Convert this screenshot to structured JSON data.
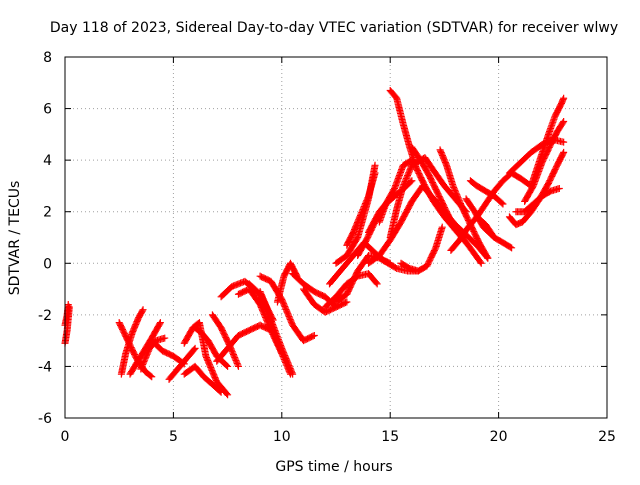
{
  "chart_data": {
    "type": "scatter",
    "title": "Day 118 of 2023, Sidereal Day-to-day VTEC variation (SDTVAR) for receiver wlwy",
    "xlabel": "GPS time / hours",
    "ylabel": "SDTVAR / TECUs",
    "xlim": [
      0,
      25
    ],
    "ylim": [
      -6,
      8
    ],
    "x_ticks": [
      0,
      5,
      10,
      15,
      20,
      25
    ],
    "y_ticks": [
      -6,
      -4,
      -2,
      0,
      2,
      4,
      6,
      8
    ],
    "x_tick_labels": [
      "0",
      "5",
      "10",
      "15",
      "20",
      "25"
    ],
    "y_tick_labels": [
      "-6",
      "-4",
      "-2",
      "0",
      "2",
      "4",
      "6",
      "8"
    ],
    "grid": true,
    "marker": "plus",
    "color": "#ff0000",
    "series": [
      {
        "x": [
          0.0,
          0.1,
          0.2
        ],
        "y": [
          -3.1,
          -2.6,
          -1.7
        ]
      },
      {
        "x": [
          0.0,
          0.1,
          0.15
        ],
        "y": [
          -2.4,
          -2.0,
          -1.6
        ]
      },
      {
        "x": [
          2.5,
          2.9,
          3.3,
          3.7,
          4.0
        ],
        "y": [
          -2.3,
          -3.0,
          -3.7,
          -4.2,
          -4.4
        ]
      },
      {
        "x": [
          2.6,
          2.8,
          3.1,
          3.4,
          3.6
        ],
        "y": [
          -4.3,
          -3.5,
          -2.7,
          -2.1,
          -1.8
        ]
      },
      {
        "x": [
          3.0,
          3.5,
          4.0,
          4.4
        ],
        "y": [
          -4.3,
          -3.6,
          -2.9,
          -2.3
        ]
      },
      {
        "x": [
          3.5,
          3.9,
          4.2,
          4.6
        ],
        "y": [
          -4.1,
          -3.3,
          -3.0,
          -2.9
        ]
      },
      {
        "x": [
          4.0,
          4.5,
          5.0,
          5.5
        ],
        "y": [
          -3.0,
          -3.4,
          -3.6,
          -3.9
        ]
      },
      {
        "x": [
          4.8,
          5.2,
          5.6,
          6.0
        ],
        "y": [
          -4.5,
          -4.1,
          -3.7,
          -3.3
        ]
      },
      {
        "x": [
          5.5,
          5.9,
          6.2,
          6.5,
          7.0,
          7.5
        ],
        "y": [
          -3.1,
          -2.5,
          -2.3,
          -3.6,
          -4.6,
          -5.1
        ]
      },
      {
        "x": [
          5.5,
          6.0,
          6.4,
          6.8,
          7.2
        ],
        "y": [
          -4.3,
          -4.0,
          -4.4,
          -4.7,
          -5.0
        ]
      },
      {
        "x": [
          6.0,
          6.3,
          6.6,
          7.0,
          7.5
        ],
        "y": [
          -2.5,
          -2.7,
          -3.0,
          -3.6,
          -4.0
        ]
      },
      {
        "x": [
          6.8,
          7.2,
          7.6,
          8.0
        ],
        "y": [
          -2.0,
          -2.5,
          -3.2,
          -4.0
        ]
      },
      {
        "x": [
          7.0,
          7.5,
          8.0,
          8.5,
          9.0,
          9.5
        ],
        "y": [
          -3.8,
          -3.3,
          -2.8,
          -2.6,
          -2.4,
          -2.6
        ]
      },
      {
        "x": [
          7.2,
          7.7,
          8.3,
          9.0,
          9.6
        ],
        "y": [
          -1.3,
          -0.9,
          -0.7,
          -1.2,
          -2.2
        ]
      },
      {
        "x": [
          8.0,
          8.5,
          9.0,
          9.5,
          10.0
        ],
        "y": [
          -1.2,
          -1.0,
          -1.6,
          -2.6,
          -3.5
        ]
      },
      {
        "x": [
          8.5,
          9.0,
          9.5,
          10.0,
          10.5
        ],
        "y": [
          -0.8,
          -1.2,
          -2.2,
          -3.3,
          -4.3
        ]
      },
      {
        "x": [
          9.0,
          9.3,
          9.6,
          10.0,
          10.4
        ],
        "y": [
          -1.1,
          -1.7,
          -2.6,
          -3.5,
          -4.3
        ]
      },
      {
        "x": [
          9.0,
          9.5,
          10.0,
          10.5,
          11.0,
          11.5
        ],
        "y": [
          -0.5,
          -0.7,
          -1.4,
          -2.4,
          -3.0,
          -2.8
        ]
      },
      {
        "x": [
          9.8,
          10.1,
          10.4,
          10.7
        ],
        "y": [
          -1.5,
          -0.5,
          0.0,
          -0.5
        ]
      },
      {
        "x": [
          10.5,
          11.0,
          11.5,
          12.0,
          12.5
        ],
        "y": [
          -0.4,
          -0.8,
          -1.1,
          -1.3,
          -1.7
        ]
      },
      {
        "x": [
          11.0,
          11.5,
          12.0,
          12.5,
          13.0
        ],
        "y": [
          -1.0,
          -1.6,
          -1.9,
          -1.7,
          -1.5
        ]
      },
      {
        "x": [
          12.0,
          12.5,
          13.0,
          13.5,
          14.0,
          14.4
        ],
        "y": [
          -1.7,
          -1.3,
          -0.8,
          -0.5,
          -0.4,
          -0.8
        ]
      },
      {
        "x": [
          12.5,
          13.0,
          13.5,
          14.0,
          14.5,
          15.0
        ],
        "y": [
          -1.5,
          -1.2,
          -0.3,
          0.3,
          0.2,
          0.0
        ]
      },
      {
        "x": [
          12.2,
          12.8,
          13.3,
          13.8,
          14.3,
          14.7,
          15.3,
          15.8,
          16.3
        ],
        "y": [
          -0.8,
          -0.2,
          0.3,
          0.8,
          0.4,
          0.1,
          -0.2,
          -0.3,
          -0.3
        ]
      },
      {
        "x": [
          12.5,
          13.0,
          13.5,
          14.0,
          14.3
        ],
        "y": [
          0.0,
          0.3,
          1.0,
          2.5,
          3.8
        ]
      },
      {
        "x": [
          13.0,
          13.3,
          13.6,
          14.0,
          14.3
        ],
        "y": [
          0.7,
          1.2,
          1.8,
          2.6,
          3.5
        ]
      },
      {
        "x": [
          13.5,
          13.9,
          14.3,
          14.8,
          15.2
        ],
        "y": [
          0.3,
          0.9,
          1.6,
          2.3,
          2.6
        ]
      },
      {
        "x": [
          14.0,
          14.5,
          15.0,
          15.5,
          16.0,
          16.5
        ],
        "y": [
          0.0,
          0.3,
          0.9,
          1.6,
          2.4,
          3.0
        ]
      },
      {
        "x": [
          14.0,
          14.5,
          15.0,
          15.5,
          16.0
        ],
        "y": [
          1.2,
          2.0,
          2.5,
          2.8,
          3.2
        ]
      },
      {
        "x": [
          14.5,
          14.8,
          15.2,
          15.6,
          16.0
        ],
        "y": [
          1.6,
          2.3,
          2.9,
          3.8,
          4.0
        ]
      },
      {
        "x": [
          15.0,
          15.3,
          15.6,
          16.0,
          16.6,
          17.0,
          17.5,
          18.0,
          18.5
        ],
        "y": [
          1.0,
          2.1,
          3.0,
          3.8,
          4.1,
          3.6,
          3.0,
          2.5,
          2.0
        ]
      },
      {
        "x": [
          15.0,
          15.3,
          15.6,
          15.9,
          16.2,
          16.6,
          17.0,
          17.5,
          18.0,
          18.6,
          19.2
        ],
        "y": [
          6.7,
          6.4,
          5.4,
          4.5,
          3.7,
          3.0,
          2.4,
          1.8,
          1.3,
          0.7,
          0.0
        ]
      },
      {
        "x": [
          15.5,
          15.9,
          16.3,
          16.7,
          17.1,
          17.4
        ],
        "y": [
          0.0,
          -0.2,
          -0.3,
          -0.1,
          0.6,
          1.4
        ]
      },
      {
        "x": [
          16.0,
          16.4,
          16.8,
          17.2,
          17.6,
          18.0
        ],
        "y": [
          4.5,
          4.0,
          3.4,
          2.7,
          2.0,
          1.3
        ]
      },
      {
        "x": [
          16.5,
          17.0,
          17.5,
          18.0,
          18.5,
          19.0,
          19.5
        ],
        "y": [
          3.0,
          2.5,
          2.0,
          1.5,
          1.1,
          0.7,
          0.2
        ]
      },
      {
        "x": [
          17.3,
          17.6,
          17.9,
          18.3,
          18.7,
          19.1,
          19.5
        ],
        "y": [
          4.4,
          3.8,
          3.0,
          2.2,
          1.5,
          0.8,
          0.2
        ]
      },
      {
        "x": [
          17.8,
          18.2,
          18.6,
          19.0,
          19.4,
          19.8
        ],
        "y": [
          0.5,
          0.9,
          1.4,
          1.8,
          1.5,
          1.0
        ]
      },
      {
        "x": [
          18.5,
          18.9,
          19.3,
          19.8,
          20.2,
          20.6
        ],
        "y": [
          2.5,
          2.0,
          1.4,
          1.0,
          0.8,
          0.6
        ]
      },
      {
        "x": [
          19.0,
          19.4,
          19.8,
          20.2,
          20.6,
          21.0,
          21.5
        ],
        "y": [
          1.8,
          2.3,
          2.8,
          3.2,
          3.5,
          3.3,
          3.0
        ]
      },
      {
        "x": [
          18.7,
          19.0,
          19.4,
          19.8,
          20.2
        ],
        "y": [
          3.2,
          3.0,
          2.8,
          2.6,
          2.3
        ]
      },
      {
        "x": [
          20.5,
          21.0,
          21.5,
          22.0,
          22.5,
          23.0
        ],
        "y": [
          3.5,
          3.9,
          4.3,
          4.6,
          4.8,
          4.7
        ]
      },
      {
        "x": [
          20.5,
          20.8,
          21.1,
          21.5,
          21.9,
          22.3,
          22.7,
          23.0
        ],
        "y": [
          1.8,
          1.5,
          1.6,
          2.0,
          2.5,
          3.1,
          3.8,
          4.3
        ]
      },
      {
        "x": [
          20.8,
          21.2,
          21.6,
          22.0,
          22.4,
          22.8
        ],
        "y": [
          2.0,
          2.0,
          2.3,
          2.6,
          2.8,
          2.9
        ]
      },
      {
        "x": [
          21.2,
          21.6,
          22.0,
          22.4,
          22.7,
          23.0
        ],
        "y": [
          2.4,
          3.0,
          3.9,
          4.6,
          5.1,
          5.5
        ]
      },
      {
        "x": [
          21.5,
          21.9,
          22.3,
          22.6,
          22.9,
          23.0
        ],
        "y": [
          3.0,
          4.0,
          5.0,
          5.7,
          6.2,
          6.4
        ]
      }
    ]
  }
}
